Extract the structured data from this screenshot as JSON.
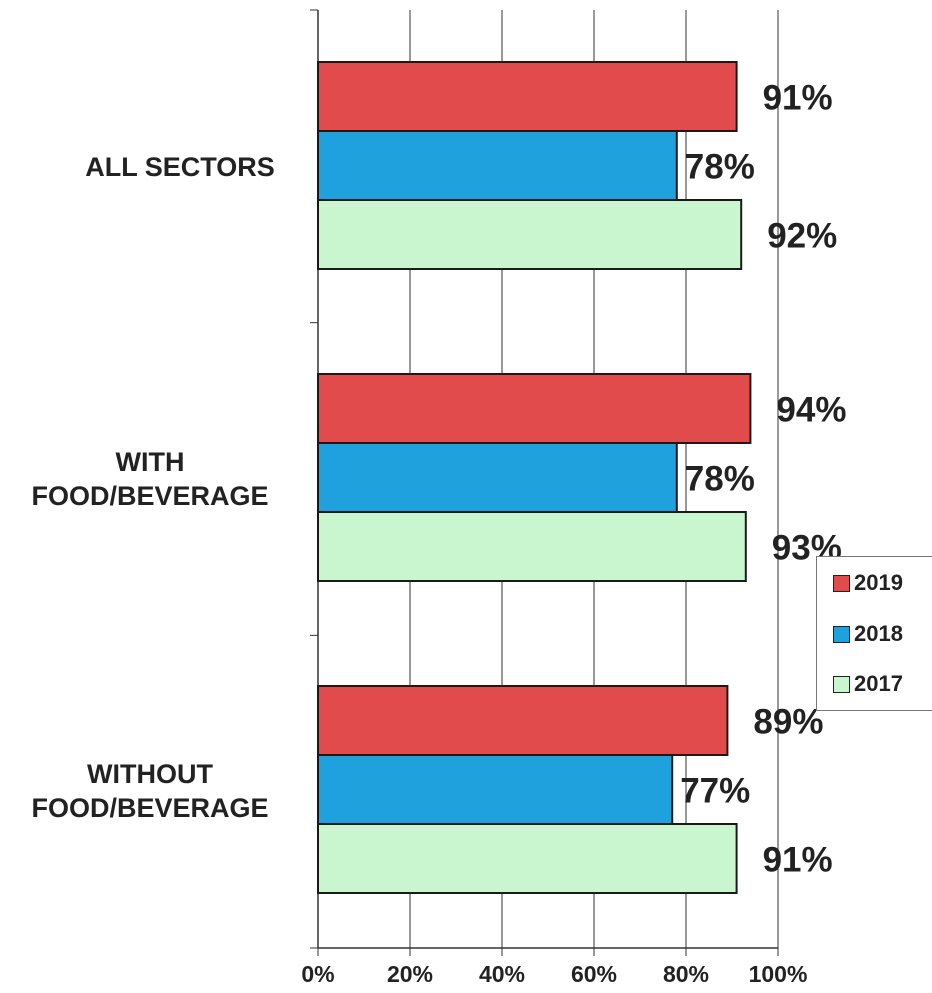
{
  "chart_data": {
    "type": "bar",
    "orientation": "horizontal",
    "categories": [
      "ALL SECTORS",
      "WITH FOOD/BEVERAGE",
      "WITHOUT FOOD/BEVERAGE"
    ],
    "category_lines": [
      [
        "ALL SECTORS"
      ],
      [
        "WITH",
        "FOOD/BEVERAGE"
      ],
      [
        "WITHOUT",
        "FOOD/BEVERAGE"
      ]
    ],
    "series": [
      {
        "name": "2019",
        "color": "#e14b4b",
        "values": [
          91,
          94,
          89
        ],
        "labels": [
          "91%",
          "94%",
          "89%"
        ]
      },
      {
        "name": "2018",
        "color": "#1fa1dd",
        "values": [
          78,
          78,
          77
        ],
        "labels": [
          "78%",
          "78%",
          "77%"
        ]
      },
      {
        "name": "2017",
        "color": "#c9f5cf",
        "values": [
          92,
          93,
          91
        ],
        "labels": [
          "92%",
          "93%",
          "91%"
        ]
      }
    ],
    "x_ticks": [
      "0%",
      "20%",
      "40%",
      "60%",
      "80%",
      "100%"
    ],
    "xlim": [
      0,
      100
    ],
    "grid": "vertical",
    "legend_position": "right",
    "title": "",
    "xlabel": "",
    "ylabel": ""
  }
}
